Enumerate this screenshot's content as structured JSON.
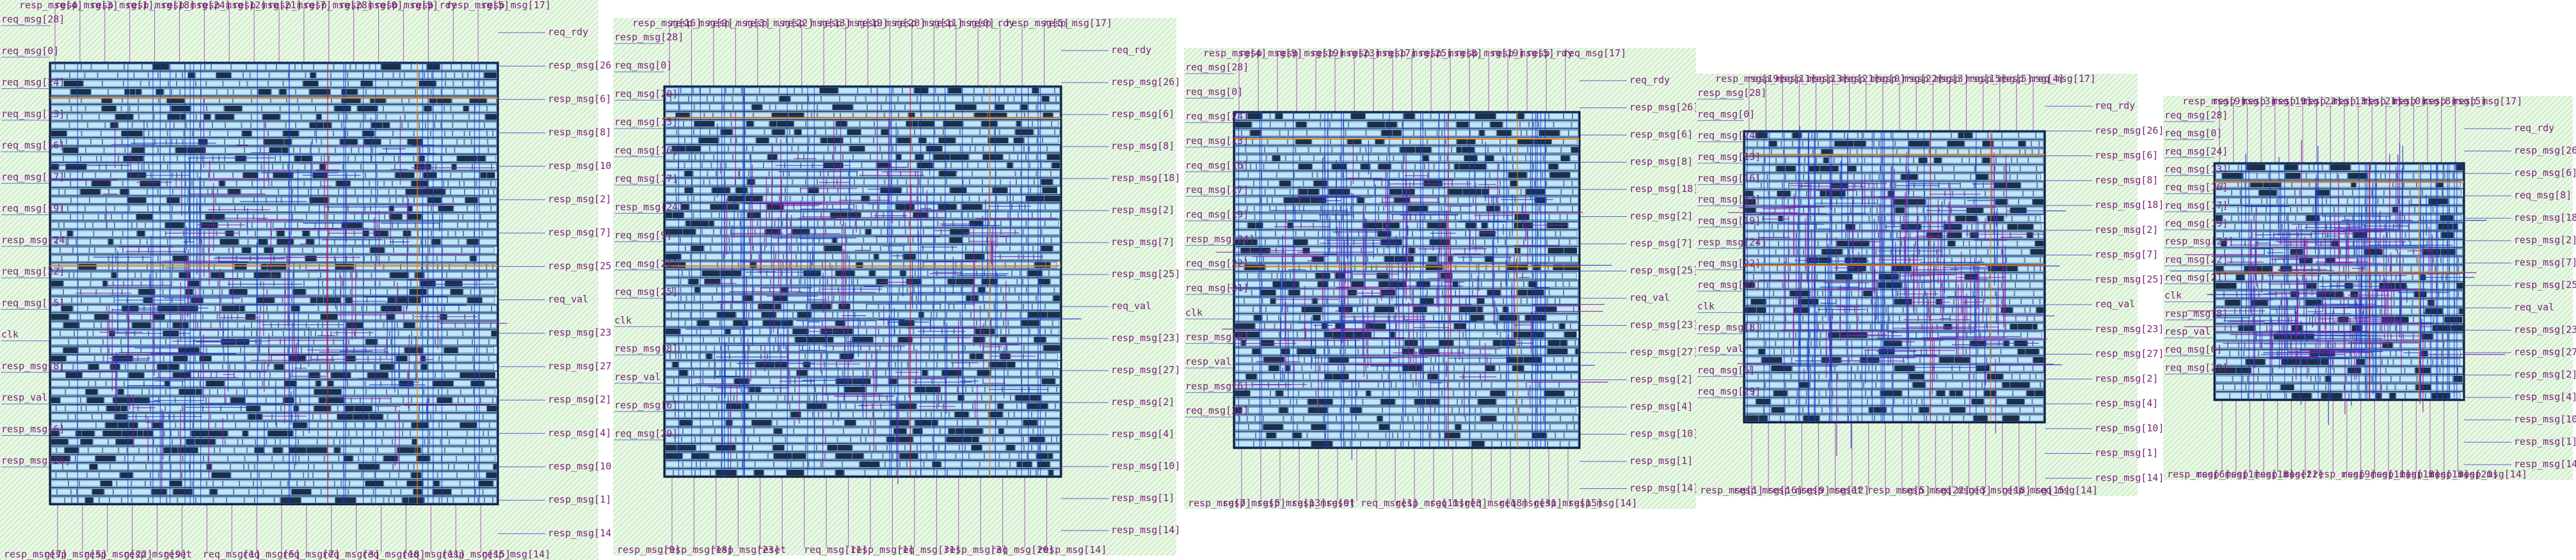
{
  "view": {
    "background": "#ffffff",
    "colors": {
      "fill_pattern": "#bfe8b8",
      "fill_pattern_dark": "#8fd08a",
      "row_fill": "#cfeefc",
      "row_line": "#0b2e6e",
      "cell_edge": "#0a1a3a",
      "route_blue": "#1a3cc8",
      "route_purple": "#8a1fa8",
      "route_orange": "#e07a10",
      "route_red": "#c01a3a",
      "label_color": "#7a1f7a",
      "pin_line": "#3a3ad0"
    }
  },
  "layouts": [
    {
      "id": "layout-1",
      "top_pins": [
        "resp_msg[4]",
        "resp_msg[3]",
        "resp_msg[1]",
        "resp_msg[18]",
        "resp_msg[24]",
        "resp_msg[12]",
        "resp_msg[21]",
        "resp_msg[7]",
        "resp_msg[28]",
        "resp_msg[0]",
        "resp_msg[9]",
        "resp_rdy",
        "resp_msg[5]",
        "resp_msg[17]"
      ],
      "left_pins": [
        "req_msg[28]",
        "req_msg[0]",
        "req_msg[24]",
        "req_msg[13]",
        "req_msg[16]",
        "req_msg[17]",
        "req_msg[19]",
        "resp_msg[24]",
        "req_msg[22]",
        "req_msg[15]",
        "clk",
        "resp_msg[8]",
        "resp_val",
        "resp_msg[6]",
        "resp_msg[26]"
      ],
      "right_pins": [
        "req_rdy",
        "resp_msg[26]",
        "resp_msg[6]",
        "resp_msg[8]",
        "resp_msg[10]",
        "resp_msg[2]",
        "resp_msg[7]",
        "resp_msg[25]",
        "req_val",
        "resp_msg[23]",
        "resp_msg[27]",
        "resp_msg[2]",
        "resp_msg[4]",
        "resp_msg[10]",
        "resp_msg[1]",
        "resp_msg[14]"
      ],
      "bottom_pins": [
        "resp_msg[7]",
        "resp_msg[5]",
        "resp_msg[22]",
        "resp_msg[9]",
        "reset",
        "req_msg[1]",
        "req_msg[5]",
        "req_msg[7]",
        "req_msg[3]",
        "req_msg[18]",
        "req_msg[11]",
        "resp_msg[15]",
        "resp_msg[14]"
      ]
    },
    {
      "id": "layout-2",
      "top_pins": [
        "resp_msg[16]",
        "resp_msg[9]",
        "resp_msg[3]",
        "resp_msg[22]",
        "resp_msg[13]",
        "resp_msg[19]",
        "resp_msg[20]",
        "resp_msg[11]",
        "resp_msg[0]",
        "resp_rdy",
        "resp_msg[5]",
        "resp_msg[17]"
      ],
      "left_pins": [
        "resp_msg[28]",
        "req_msg[0]",
        "req_msg[20]",
        "req_msg[13]",
        "req_msg[16]",
        "req_msg[17]",
        "resp_msg[24]",
        "req_msg[9]",
        "req_msg[21]",
        "req_msg[25]",
        "clk",
        "resp_msg[8]",
        "resp_val",
        "resp_msg[6]",
        "req_msg[29]"
      ],
      "right_pins": [
        "req_rdy",
        "resp_msg[26]",
        "resp_msg[6]",
        "resp_msg[8]",
        "resp_msg[18]",
        "resp_msg[2]",
        "resp_msg[7]",
        "resp_msg[25]",
        "req_val",
        "resp_msg[23]",
        "resp_msg[27]",
        "resp_msg[2]",
        "resp_msg[4]",
        "resp_msg[10]",
        "resp_msg[1]",
        "resp_msg[14]"
      ],
      "bottom_pins": [
        "resp_msg[9]",
        "resp_msg[18]",
        "resp_msg[23]",
        "reset",
        "req_msg[11]",
        "resp_msg[1]",
        "req_msg[31]",
        "resp_msg[3]",
        "req_msg[20]",
        "resp_msg[14]"
      ]
    },
    {
      "id": "layout-3",
      "top_pins": [
        "resp_msg[4]",
        "resp_msg[9]",
        "resp_msg[19]",
        "resp_msg[23]",
        "resp_msg[17]",
        "resp_msg[25]",
        "resp_msg[8]",
        "resp_msg[19]",
        "resp_msg[5]",
        "resp_rdy",
        "req_msg[17]"
      ],
      "left_pins": [
        "req_msg[28]",
        "req_msg[0]",
        "req_msg[24]",
        "req_msg[13]",
        "req_msg[16]",
        "req_msg[17]",
        "req_msg[19]",
        "resp_msg[24]",
        "req_msg[22]",
        "req_msg[21]",
        "clk",
        "resp_msg[8]",
        "resp_val",
        "resp_msg[6]",
        "req_msg[29]"
      ],
      "right_pins": [
        "req_rdy",
        "resp_msg[26]",
        "resp_msg[6]",
        "resp_msg[8]",
        "resp_msg[18]",
        "resp_msg[2]",
        "resp_msg[7]",
        "resp_msg[25]",
        "req_val",
        "resp_msg[23]",
        "resp_msg[27]",
        "resp_msg[2]",
        "resp_msg[4]",
        "resp_msg[10]",
        "resp_msg[1]",
        "resp_msg[14]"
      ],
      "bottom_pins": [
        "resp_msg[7]",
        "resp_msg[5]",
        "resp_msg[13]",
        "resp_msg[9]",
        "reset",
        "req_msg[1]",
        "resp_msg[11]",
        "req_msg[3]",
        "req_msg[18]",
        "req_msg[31]",
        "resp_msg[15]",
        "resp_msg[14]"
      ]
    },
    {
      "id": "layout-4",
      "top_pins": [
        "resp_msg[19]",
        "resp_msg[11]",
        "resp_msg[13]",
        "resp_msg[21]",
        "resp_msg[0]",
        "resp_msg[22]",
        "resp_msg[3]",
        "resp_msg[15]",
        "resp_msg[5]",
        "resp_msg[4]",
        "req_msg[17]"
      ],
      "left_pins": [
        "resp_msg[28]",
        "req_msg[0]",
        "req_msg[24]",
        "req_msg[13]",
        "req_msg[16]",
        "req_msg[17]",
        "req_msg[19]",
        "resp_msg[24]",
        "req_msg[22]",
        "req_msg[21]",
        "clk",
        "resp_msg[8]",
        "resp_val",
        "req_msg[6]",
        "req_msg[29]"
      ],
      "right_pins": [
        "req_rdy",
        "resp_msg[26]",
        "resp_msg[6]",
        "resp_msg[8]",
        "resp_msg[18]",
        "resp_msg[2]",
        "resp_msg[7]",
        "resp_msg[25]",
        "req_val",
        "resp_msg[23]",
        "resp_msg[27]",
        "resp_msg[2]",
        "resp_msg[4]",
        "resp_msg[10]",
        "resp_msg[1]",
        "resp_msg[14]"
      ],
      "bottom_pins": [
        "resp_msg[1]",
        "resp_msg[16]",
        "resp_msg[9]",
        "resp_msg[12]",
        "reset",
        "resp_msg[5]",
        "resp_msg[22]",
        "req_msg[3]",
        "req_msg[18]",
        "resp_msg[15]",
        "req_msg[14]"
      ]
    },
    {
      "id": "layout-5",
      "top_pins": [
        "resp_msg[9]",
        "resp_msg[3]",
        "resp_msg[19]",
        "resp_msg[22]",
        "resp_msg[13]",
        "resp_msg[21]",
        "resp_msg[0]",
        "resp_msg[8]",
        "resp_msg[5]",
        "resp_msg[17]"
      ],
      "left_pins": [
        "req_msg[28]",
        "req_msg[0]",
        "req_msg[24]",
        "req_msg[13]",
        "req_msg[16]",
        "req_msg[17]",
        "req_msg[19]",
        "resp_msg[24]",
        "req_msg[22]",
        "req_msg[21]",
        "clk",
        "resp_msg[8]",
        "resp_val",
        "req_msg[6]",
        "req_msg[29]"
      ],
      "right_pins": [
        "req_rdy",
        "resp_msg[26]",
        "resp_msg[6]",
        "req_msg[8]",
        "resp_msg[18]",
        "resp_msg[2]",
        "resp_msg[7]",
        "resp_msg[25]",
        "req_val",
        "resp_msg[23]",
        "resp_msg[27]",
        "resp_msg[2]",
        "resp_msg[4]",
        "resp_msg[10]",
        "resp_msg[1]",
        "resp_msg[14]"
      ],
      "bottom_pins": [
        "resp_msg[6]",
        "resp_msg[1]",
        "resp_msg[18]",
        "resp_msg[22]",
        "reset",
        "resp_msg[9]",
        "resp_msg[11]",
        "resp_msg[18]",
        "resp_msg[13]",
        "resp_msg[20]",
        "resp_msg[14]"
      ]
    }
  ]
}
